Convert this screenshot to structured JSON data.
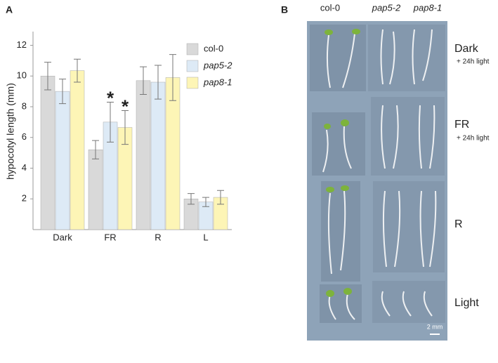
{
  "chart_data": {
    "type": "bar",
    "panel_label": "A",
    "y_label": "hypocotyl length (mm)",
    "categories": [
      "Dark",
      "FR",
      "R",
      "L"
    ],
    "series": [
      {
        "name": "col-0",
        "color": "#d9d9d9",
        "values": [
          10.0,
          5.2,
          9.7,
          2.0
        ],
        "errors": [
          0.9,
          0.6,
          0.9,
          0.35
        ]
      },
      {
        "name": "pap5-2",
        "color": "#ddeaf6",
        "values": [
          9.0,
          7.0,
          9.6,
          1.8
        ],
        "errors": [
          0.8,
          1.3,
          1.1,
          0.3
        ]
      },
      {
        "name": "pap8-1",
        "color": "#fdf5b6",
        "values": [
          10.35,
          6.65,
          9.9,
          2.1
        ],
        "errors": [
          0.75,
          1.1,
          1.5,
          0.45
        ]
      }
    ],
    "annotations": [
      "*",
      "*"
    ],
    "ylim": [
      0,
      12.8
    ],
    "yticks": [
      2,
      4,
      6,
      8,
      10,
      12
    ],
    "grid": false
  },
  "photo_panel": {
    "panel_label": "B",
    "columns": [
      "col-0",
      "pap5-2",
      "pap8-1"
    ],
    "rows": [
      {
        "label": "Dark",
        "note": "+ 24h light"
      },
      {
        "label": "FR",
        "note": "+ 24h light"
      },
      {
        "label": "R"
      },
      {
        "label": "Light"
      }
    ],
    "scale_bar": "2 mm"
  }
}
